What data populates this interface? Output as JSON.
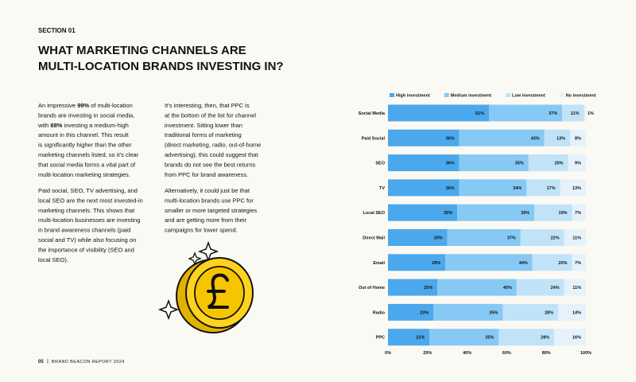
{
  "header": {
    "section": "SECTION 01",
    "title": [
      "WHAT MARKETING CHANNELS ARE",
      "MULTI-LOCATION BRANDS INVESTING IN?"
    ]
  },
  "columns": [
    {
      "paragraphs": [
        {
          "lines": [
            [
              "An impressive ",
              "99%",
              " of multi-location"
            ],
            "brands are investing in social media,",
            [
              "with ",
              "88%",
              " investing a medium-high"
            ],
            "amount in this channel. This result",
            "is significantly higher than the other",
            "marketing channels listed, so it’s clear",
            "that social media forms a vital part of",
            "multi-location marketing strategies."
          ]
        },
        {
          "lines": [
            "Paid social, SEO, TV advertising, and",
            "local SEO are the next most invested-in",
            "marketing channels. This shows that",
            "multi-location businesses are investing",
            "in brand awareness channels (paid",
            "social and TV) while also focusing on",
            "the importance of visibility (SEO and",
            "local SEO)."
          ]
        }
      ]
    },
    {
      "paragraphs": [
        {
          "lines": [
            "It’s interesting, then, that PPC is",
            "at the bottom of the list for channel",
            "investment. Sitting lower than",
            "traditional forms of marketing",
            "(direct marketing, radio, out-of-home",
            "advertising), this could suggest that",
            "brands do not see the best returns",
            "from PPC for brand awareness."
          ]
        },
        {
          "lines": [
            "Alternatively, it could just be that",
            "multi-location brands use PPC for",
            "smaller or more targeted strategies",
            "and are getting more from their",
            "campaigns for lower spend."
          ]
        }
      ]
    }
  ],
  "footer": {
    "page": "05",
    "text": "BRAND BEACON REPORT 2024"
  },
  "chart_data": {
    "type": "bar",
    "orientation": "horizontal",
    "stacked": true,
    "legend": "top",
    "categories": [
      "Social Media",
      "Paid Social",
      "SEO",
      "TV",
      "Local SEO",
      "Direct Mail",
      "Email",
      "Out of Home",
      "Radio",
      "PPC"
    ],
    "series": [
      {
        "name": "High investment",
        "color": "#4ba8ec",
        "values": [
          51,
          36,
          36,
          36,
          35,
          30,
          29,
          25,
          23,
          21
        ],
        "value_labels": [
          "51%",
          "36%",
          "36%",
          "36%",
          "35%",
          "30%",
          "29%",
          "25%",
          "23%",
          "21%"
        ]
      },
      {
        "name": "Medium investment",
        "color": "#86c9f4",
        "values": [
          37,
          43,
          35,
          34,
          39,
          37,
          44,
          40,
          35,
          35
        ],
        "value_labels": [
          "37%",
          "43%",
          "35%",
          "34%",
          "39%",
          "37%",
          "44%",
          "40%",
          "35%",
          "35%"
        ]
      },
      {
        "name": "Low investment",
        "color": "#c1e3f8",
        "values": [
          11,
          13,
          20,
          17,
          19,
          22,
          20,
          24,
          28,
          28
        ],
        "value_labels": [
          "11%",
          "13%",
          "20%",
          "17%",
          "19%",
          "22%",
          "20%",
          "24%",
          "28%",
          "28%"
        ]
      },
      {
        "name": "No investment",
        "color": "#e5f2fb",
        "values": [
          1,
          8,
          9,
          13,
          7,
          11,
          7,
          11,
          14,
          16
        ],
        "value_labels": [
          "1%",
          "8%",
          "9%",
          "13%",
          "7%",
          "11%",
          "7%",
          "11%",
          "14%",
          "16%"
        ]
      }
    ],
    "xlim": [
      0,
      100
    ],
    "xticks": [
      {
        "value": 0,
        "label": "0%"
      },
      {
        "value": 20,
        "label": "20%"
      },
      {
        "value": 40,
        "label": "40%"
      },
      {
        "value": 60,
        "label": "60%"
      },
      {
        "value": 80,
        "label": "80%"
      },
      {
        "value": 100,
        "label": "100%"
      }
    ]
  }
}
